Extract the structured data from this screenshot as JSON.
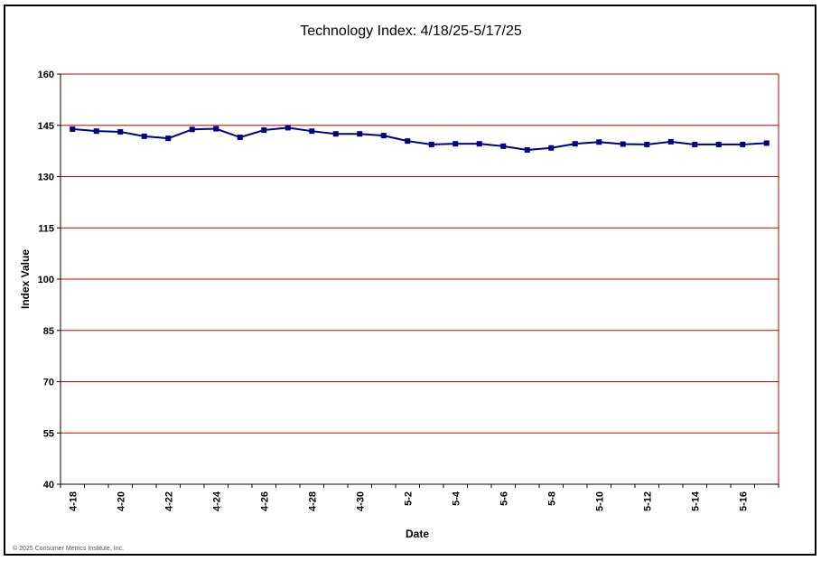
{
  "colors": {
    "gridline": "#cc0000",
    "series_line": "#000080",
    "marker": "#000080",
    "frame": "#000000",
    "background": "#ffffff"
  },
  "copyright": "© 2025 Consumer Metrics Institute, Inc.",
  "chart_data": {
    "type": "line",
    "title": "Technology Index: 4/18/25-5/17/25",
    "xlabel": "Date",
    "ylabel": "Index Value",
    "ylim": [
      40,
      160
    ],
    "yticks": [
      40,
      55,
      70,
      85,
      100,
      115,
      130,
      145,
      160
    ],
    "grid": true,
    "legend": "none",
    "x": [
      "4-18",
      "4-19",
      "4-20",
      "4-21",
      "4-22",
      "4-23",
      "4-24",
      "4-25",
      "4-26",
      "4-27",
      "4-28",
      "4-29",
      "4-30",
      "5-1",
      "5-2",
      "5-3",
      "5-4",
      "5-5",
      "5-6",
      "5-7",
      "5-8",
      "5-9",
      "5-10",
      "5-11",
      "5-12",
      "5-13",
      "5-14",
      "5-15",
      "5-16",
      "5-17"
    ],
    "xtick_labels": [
      "4-18",
      "",
      "4-20",
      "",
      "4-22",
      "",
      "4-24",
      "",
      "4-26",
      "",
      "4-28",
      "",
      "4-30",
      "",
      "5-2",
      "",
      "5-4",
      "",
      "5-6",
      "",
      "5-8",
      "",
      "5-10",
      "",
      "5-12",
      "",
      "5-14",
      "",
      "5-16",
      ""
    ],
    "series": [
      {
        "values": [
          143.9,
          143.3,
          143.1,
          141.8,
          141.2,
          143.8,
          144.0,
          141.5,
          143.6,
          144.3,
          143.3,
          142.5,
          142.5,
          142.0,
          140.4,
          139.4,
          139.6,
          139.6,
          138.9,
          137.8,
          138.4,
          139.6,
          140.1,
          139.5,
          139.4,
          140.2,
          139.4,
          139.4,
          139.4,
          139.8
        ]
      }
    ]
  }
}
